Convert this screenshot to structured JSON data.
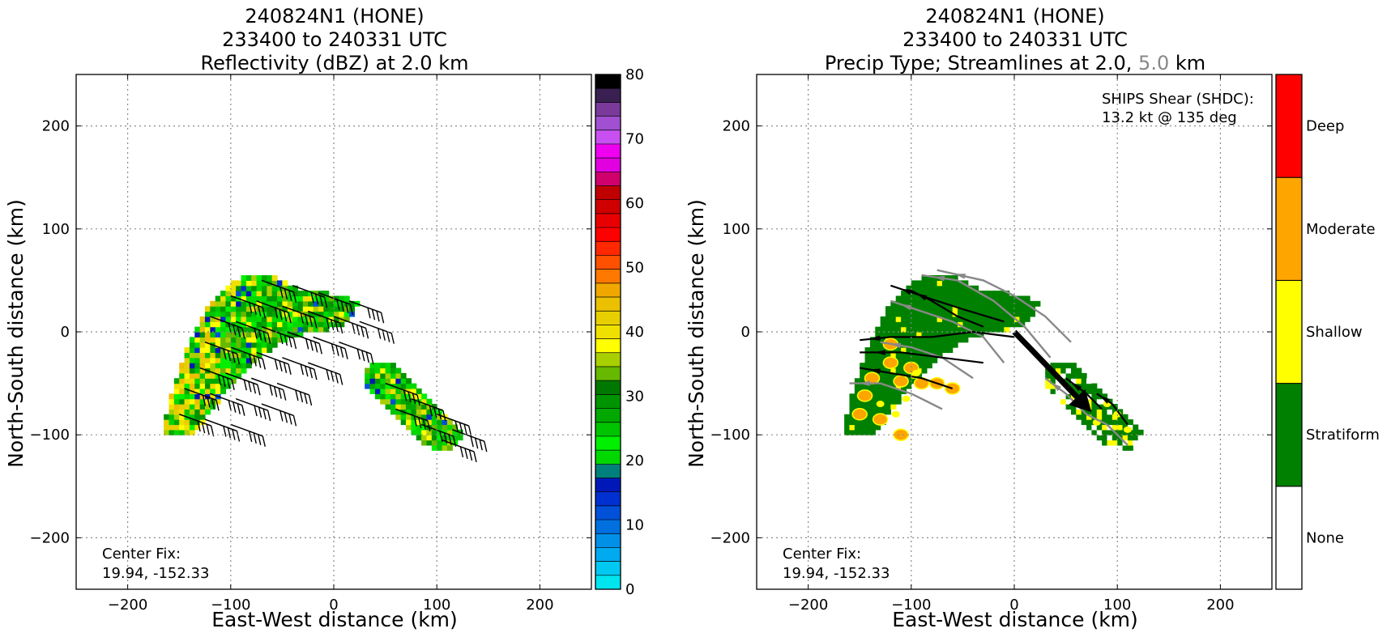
{
  "chart_data": [
    {
      "type": "heatmap",
      "title_lines": [
        "240824N1 (HONE)",
        "233400 to 240331 UTC",
        "Reflectivity (dBZ) at 2.0 km"
      ],
      "xlabel": "East-West distance (km)",
      "ylabel": "North-South distance (km)",
      "xlim": [
        -250,
        250
      ],
      "ylim": [
        -250,
        250
      ],
      "xticks": [
        -200,
        -100,
        0,
        100,
        200
      ],
      "yticks": [
        -200,
        -100,
        0,
        100,
        200
      ],
      "grid": true,
      "annotation_lines": [
        "Center Fix:",
        "19.94, -152.33"
      ],
      "center_fix": [
        19.94,
        -152.33
      ],
      "colorbar": {
        "min": 0,
        "max": 80,
        "ticks": [
          0,
          10,
          20,
          30,
          40,
          50,
          60,
          70,
          80
        ],
        "colors": [
          "#00e5ee",
          "#00c8f0",
          "#00aaf0",
          "#0090e8",
          "#0070e0",
          "#0050d8",
          "#0030d0",
          "#0018b8",
          "#00807a",
          "#00d800",
          "#00f000",
          "#00c400",
          "#00a800",
          "#009400",
          "#007800",
          "#66b800",
          "#a8d000",
          "#ffff00",
          "#f0e000",
          "#e8d000",
          "#ebc000",
          "#f0a800",
          "#ff7800",
          "#ff5000",
          "#ff2800",
          "#ff0000",
          "#e80000",
          "#d00000",
          "#c00000",
          "#d0006c",
          "#e000e0",
          "#f000f0",
          "#c850f0",
          "#a050d0",
          "#7a3a9a",
          "#3a2050",
          "#000000"
        ]
      },
      "regions": [
        {
          "name": "main-band",
          "polygon": [
            [
              -165,
              -100
            ],
            [
              -162,
              -78
            ],
            [
              -155,
              -50
            ],
            [
              -140,
              -10
            ],
            [
              -125,
              20
            ],
            [
              -110,
              40
            ],
            [
              -90,
              52
            ],
            [
              -70,
              58
            ],
            [
              -50,
              50
            ],
            [
              -30,
              40
            ],
            [
              -10,
              38
            ],
            [
              10,
              35
            ],
            [
              25,
              30
            ],
            [
              20,
              15
            ],
            [
              5,
              5
            ],
            [
              -15,
              0
            ],
            [
              -40,
              -5
            ],
            [
              -65,
              -20
            ],
            [
              -90,
              -45
            ],
            [
              -110,
              -65
            ],
            [
              -125,
              -85
            ],
            [
              -135,
              -100
            ],
            [
              -150,
              -102
            ]
          ]
        },
        {
          "name": "southeast-band",
          "polygon": [
            [
              30,
              -40
            ],
            [
              38,
              -28
            ],
            [
              55,
              -30
            ],
            [
              75,
              -45
            ],
            [
              95,
              -65
            ],
            [
              115,
              -85
            ],
            [
              130,
              -100
            ],
            [
              118,
              -112
            ],
            [
              100,
              -118
            ],
            [
              85,
              -106
            ],
            [
              65,
              -90
            ],
            [
              45,
              -68
            ],
            [
              32,
              -55
            ]
          ]
        }
      ],
      "wind_barbs": [
        [
          -70,
          50
        ],
        [
          -40,
          45
        ],
        [
          -15,
          38
        ],
        [
          15,
          30
        ],
        [
          -100,
          35
        ],
        [
          -75,
          30
        ],
        [
          -50,
          25
        ],
        [
          -25,
          20
        ],
        [
          0,
          15
        ],
        [
          25,
          10
        ],
        [
          -120,
          15
        ],
        [
          -95,
          10
        ],
        [
          -70,
          5
        ],
        [
          -45,
          0
        ],
        [
          -20,
          -5
        ],
        [
          5,
          -10
        ],
        [
          -125,
          -10
        ],
        [
          -100,
          -15
        ],
        [
          -75,
          -20
        ],
        [
          -50,
          -25
        ],
        [
          -25,
          -30
        ],
        [
          -130,
          -35
        ],
        [
          -105,
          -40
        ],
        [
          -80,
          -45
        ],
        [
          -55,
          -50
        ],
        [
          -145,
          -55
        ],
        [
          -120,
          -60
        ],
        [
          -95,
          -65
        ],
        [
          -70,
          -70
        ],
        [
          -150,
          -80
        ],
        [
          -125,
          -85
        ],
        [
          -100,
          -90
        ],
        [
          50,
          -50
        ],
        [
          75,
          -65
        ],
        [
          100,
          -80
        ],
        [
          115,
          -95
        ],
        [
          60,
          -75
        ],
        [
          85,
          -90
        ],
        [
          105,
          -105
        ]
      ]
    },
    {
      "type": "heatmap",
      "title_lines": [
        "240824N1 (HONE)",
        "233400 to 240331 UTC"
      ],
      "title_line3": {
        "prefix": "Precip Type; Streamlines at 2.0, ",
        "highlight": "5.0",
        "suffix": " km"
      },
      "xlabel": "East-West distance (km)",
      "ylabel": "North-South distance (km)",
      "xlim": [
        -250,
        250
      ],
      "ylim": [
        -250,
        250
      ],
      "xticks": [
        -200,
        -100,
        0,
        100,
        200
      ],
      "yticks": [
        -200,
        -100,
        0,
        100,
        200
      ],
      "grid": true,
      "annotation_lines": [
        "Center Fix:",
        "19.94, -152.33"
      ],
      "shear_lines": [
        "SHIPS Shear (SHDC):",
        "13.2 kt @ 135 deg"
      ],
      "shear": {
        "speed_kt": 13.2,
        "direction_deg": 135
      },
      "shear_arrow": [
        [
          0,
          0
        ],
        [
          75,
          -78
        ]
      ],
      "categories": [
        {
          "name": "None",
          "color": "#ffffff"
        },
        {
          "name": "Stratiform",
          "color": "#008000"
        },
        {
          "name": "Shallow",
          "color": "#ffff00"
        },
        {
          "name": "Moderate",
          "color": "#ffa500"
        },
        {
          "name": "Deep",
          "color": "#ff0000"
        }
      ],
      "regions": [
        {
          "name": "main-band",
          "polygon": [
            [
              -165,
              -100
            ],
            [
              -162,
              -78
            ],
            [
              -155,
              -50
            ],
            [
              -140,
              -10
            ],
            [
              -125,
              20
            ],
            [
              -110,
              40
            ],
            [
              -90,
              52
            ],
            [
              -70,
              58
            ],
            [
              -50,
              50
            ],
            [
              -30,
              40
            ],
            [
              -10,
              38
            ],
            [
              10,
              35
            ],
            [
              25,
              30
            ],
            [
              20,
              15
            ],
            [
              5,
              5
            ],
            [
              -15,
              0
            ],
            [
              -40,
              -5
            ],
            [
              -65,
              -20
            ],
            [
              -90,
              -45
            ],
            [
              -110,
              -65
            ],
            [
              -125,
              -85
            ],
            [
              -135,
              -100
            ],
            [
              -150,
              -102
            ]
          ]
        },
        {
          "name": "southeast-band",
          "polygon": [
            [
              30,
              -40
            ],
            [
              38,
              -28
            ],
            [
              55,
              -30
            ],
            [
              75,
              -45
            ],
            [
              95,
              -65
            ],
            [
              115,
              -85
            ],
            [
              130,
              -100
            ],
            [
              118,
              -112
            ],
            [
              100,
              -118
            ],
            [
              85,
              -106
            ],
            [
              65,
              -90
            ],
            [
              45,
              -68
            ],
            [
              32,
              -55
            ]
          ]
        }
      ],
      "moderate_cells": [
        [
          -145,
          -62
        ],
        [
          -138,
          -45
        ],
        [
          -120,
          -30
        ],
        [
          -110,
          -48
        ],
        [
          -100,
          -35
        ],
        [
          -90,
          -50
        ],
        [
          -75,
          -50
        ],
        [
          -60,
          -55
        ],
        [
          -130,
          -85
        ],
        [
          -150,
          -80
        ],
        [
          -110,
          -100
        ],
        [
          -120,
          -12
        ]
      ],
      "shallow_cells": [
        [
          -130,
          -70
        ],
        [
          -115,
          -80
        ],
        [
          -105,
          -65
        ],
        [
          -95,
          -40
        ],
        [
          90,
          -70
        ],
        [
          100,
          -80
        ],
        [
          110,
          -95
        ],
        [
          80,
          -88
        ]
      ],
      "streamlines_2km": [
        [
          [
            -30,
            5
          ],
          [
            -55,
            15
          ],
          [
            -80,
            30
          ],
          [
            -100,
            40
          ]
        ],
        [
          [
            -10,
            10
          ],
          [
            -50,
            22
          ],
          [
            -90,
            35
          ],
          [
            -120,
            45
          ]
        ],
        [
          [
            0,
            -5
          ],
          [
            -40,
            0
          ],
          [
            -80,
            -5
          ],
          [
            -120,
            -5
          ],
          [
            -150,
            -8
          ]
        ],
        [
          [
            -30,
            -30
          ],
          [
            -70,
            -25
          ],
          [
            -110,
            -20
          ],
          [
            -150,
            -20
          ]
        ],
        [
          [
            -60,
            -55
          ],
          [
            -90,
            -45
          ],
          [
            -120,
            -40
          ],
          [
            -150,
            -35
          ]
        ],
        [
          [
            110,
            -90
          ],
          [
            95,
            -70
          ],
          [
            80,
            -60
          ]
        ],
        [
          [
            85,
            -75
          ],
          [
            70,
            -60
          ],
          [
            50,
            -45
          ]
        ]
      ],
      "streamlines_5km": [
        [
          [
            55,
            -10
          ],
          [
            30,
            15
          ],
          [
            0,
            35
          ],
          [
            -30,
            50
          ],
          [
            -75,
            60
          ]
        ],
        [
          [
            35,
            -25
          ],
          [
            10,
            5
          ],
          [
            -20,
            30
          ],
          [
            -55,
            50
          ],
          [
            -90,
            55
          ]
        ],
        [
          [
            -10,
            -30
          ],
          [
            -30,
            -5
          ],
          [
            -60,
            10
          ],
          [
            -90,
            20
          ],
          [
            -120,
            30
          ]
        ],
        [
          [
            -40,
            -45
          ],
          [
            -70,
            -25
          ],
          [
            -100,
            -15
          ],
          [
            -130,
            -10
          ]
        ],
        [
          [
            -70,
            -75
          ],
          [
            -100,
            -60
          ],
          [
            -130,
            -50
          ],
          [
            -160,
            -50
          ]
        ],
        [
          [
            110,
            -110
          ],
          [
            90,
            -90
          ],
          [
            70,
            -80
          ],
          [
            50,
            -60
          ],
          [
            30,
            -45
          ]
        ]
      ]
    }
  ]
}
